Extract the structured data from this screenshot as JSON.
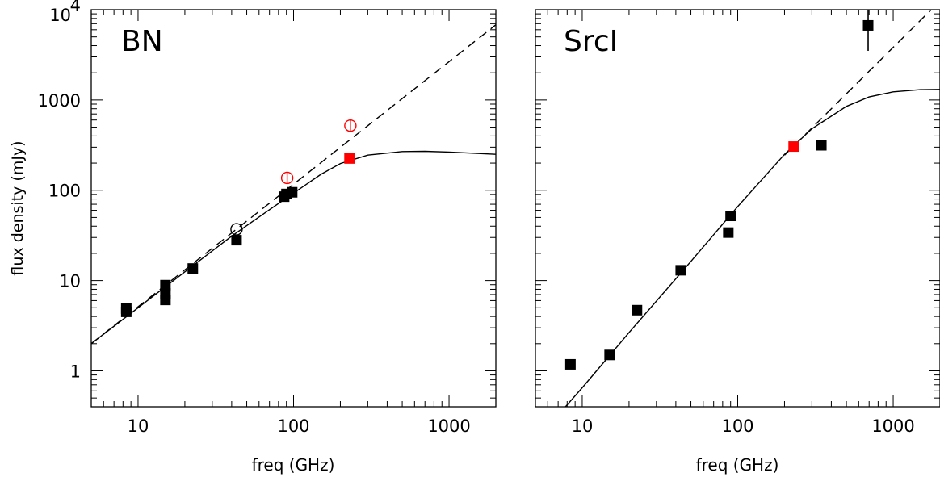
{
  "chart_data": [
    {
      "type": "scatter",
      "title": "BN",
      "xlabel": "freq (GHz)",
      "ylabel": "flux density (mJy)",
      "xscale": "log",
      "yscale": "log",
      "xlim": [
        5,
        2000
      ],
      "ylim": [
        0.4,
        10000
      ],
      "x_tick_labels": [
        "10",
        "100",
        "1000"
      ],
      "y_tick_labels": [
        "1",
        "10",
        "100",
        "1000",
        "10^4"
      ],
      "grid": false,
      "series": [
        {
          "marker": "filled-square",
          "color": "#000000",
          "points": [
            {
              "x": 8.4,
              "y": 4.5
            },
            {
              "x": 8.4,
              "y": 4.9
            },
            {
              "x": 15,
              "y": 6.1
            },
            {
              "x": 15,
              "y": 7.2
            },
            {
              "x": 15,
              "y": 8.9
            },
            {
              "x": 22.5,
              "y": 13.6
            },
            {
              "x": 43,
              "y": 28
            },
            {
              "x": 87,
              "y": 85
            },
            {
              "x": 90,
              "y": 91
            },
            {
              "x": 98,
              "y": 95
            }
          ]
        },
        {
          "marker": "filled-square",
          "color": "#ff0000",
          "points": [
            {
              "x": 229,
              "y": 225
            }
          ]
        },
        {
          "marker": "open-circle-errorbar",
          "color": "#ff0000",
          "points": [
            {
              "x": 91,
              "y": 137
            },
            {
              "x": 232,
              "y": 520
            }
          ]
        },
        {
          "marker": "open-circle",
          "color": "#000000",
          "points": [
            {
              "x": 43,
              "y": 37
            }
          ]
        }
      ],
      "lines": [
        {
          "style": "dashed",
          "points": [
            {
              "x": 5,
              "y": 2.0
            },
            {
              "x": 2000,
              "y": 6800
            }
          ]
        },
        {
          "style": "solid",
          "points": [
            {
              "x": 5,
              "y": 2.0
            },
            {
              "x": 10,
              "y": 5.0
            },
            {
              "x": 20,
              "y": 12.5
            },
            {
              "x": 40,
              "y": 31
            },
            {
              "x": 70,
              "y": 61
            },
            {
              "x": 100,
              "y": 93
            },
            {
              "x": 150,
              "y": 150
            },
            {
              "x": 200,
              "y": 198
            },
            {
              "x": 300,
              "y": 245
            },
            {
              "x": 500,
              "y": 268
            },
            {
              "x": 700,
              "y": 270
            },
            {
              "x": 1000,
              "y": 265
            },
            {
              "x": 2000,
              "y": 250
            }
          ]
        }
      ]
    },
    {
      "type": "scatter",
      "title": "SrcI",
      "xlabel": "freq (GHz)",
      "ylabel": "",
      "xscale": "log",
      "yscale": "log",
      "xlim": [
        5,
        2000
      ],
      "ylim": [
        0.4,
        10000
      ],
      "x_tick_labels": [
        "10",
        "100",
        "1000"
      ],
      "y_tick_labels": [],
      "grid": false,
      "series": [
        {
          "marker": "filled-square",
          "color": "#000000",
          "points": [
            {
              "x": 8.4,
              "y": 1.18
            },
            {
              "x": 15,
              "y": 1.5
            },
            {
              "x": 22.5,
              "y": 4.7
            },
            {
              "x": 43,
              "y": 13
            },
            {
              "x": 87,
              "y": 34
            },
            {
              "x": 90,
              "y": 52
            },
            {
              "x": 345,
              "y": 315
            },
            {
              "x": 690,
              "y": 6700,
              "err_low": 3500,
              "err_high": 9800
            }
          ]
        },
        {
          "marker": "filled-square",
          "color": "#ff0000",
          "points": [
            {
              "x": 229,
              "y": 305
            }
          ]
        }
      ],
      "lines": [
        {
          "style": "dashed",
          "points": [
            {
              "x": 200,
              "y": 245
            },
            {
              "x": 2000,
              "y": 12500
            }
          ]
        },
        {
          "style": "solid",
          "points": [
            {
              "x": 7.8,
              "y": 0.4
            },
            {
              "x": 10,
              "y": 0.65
            },
            {
              "x": 20,
              "y": 2.65
            },
            {
              "x": 50,
              "y": 16.3
            },
            {
              "x": 100,
              "y": 66
            },
            {
              "x": 200,
              "y": 250
            },
            {
              "x": 300,
              "y": 480
            },
            {
              "x": 500,
              "y": 850
            },
            {
              "x": 700,
              "y": 1080
            },
            {
              "x": 1000,
              "y": 1230
            },
            {
              "x": 1500,
              "y": 1300
            },
            {
              "x": 2000,
              "y": 1310
            }
          ]
        }
      ]
    }
  ]
}
